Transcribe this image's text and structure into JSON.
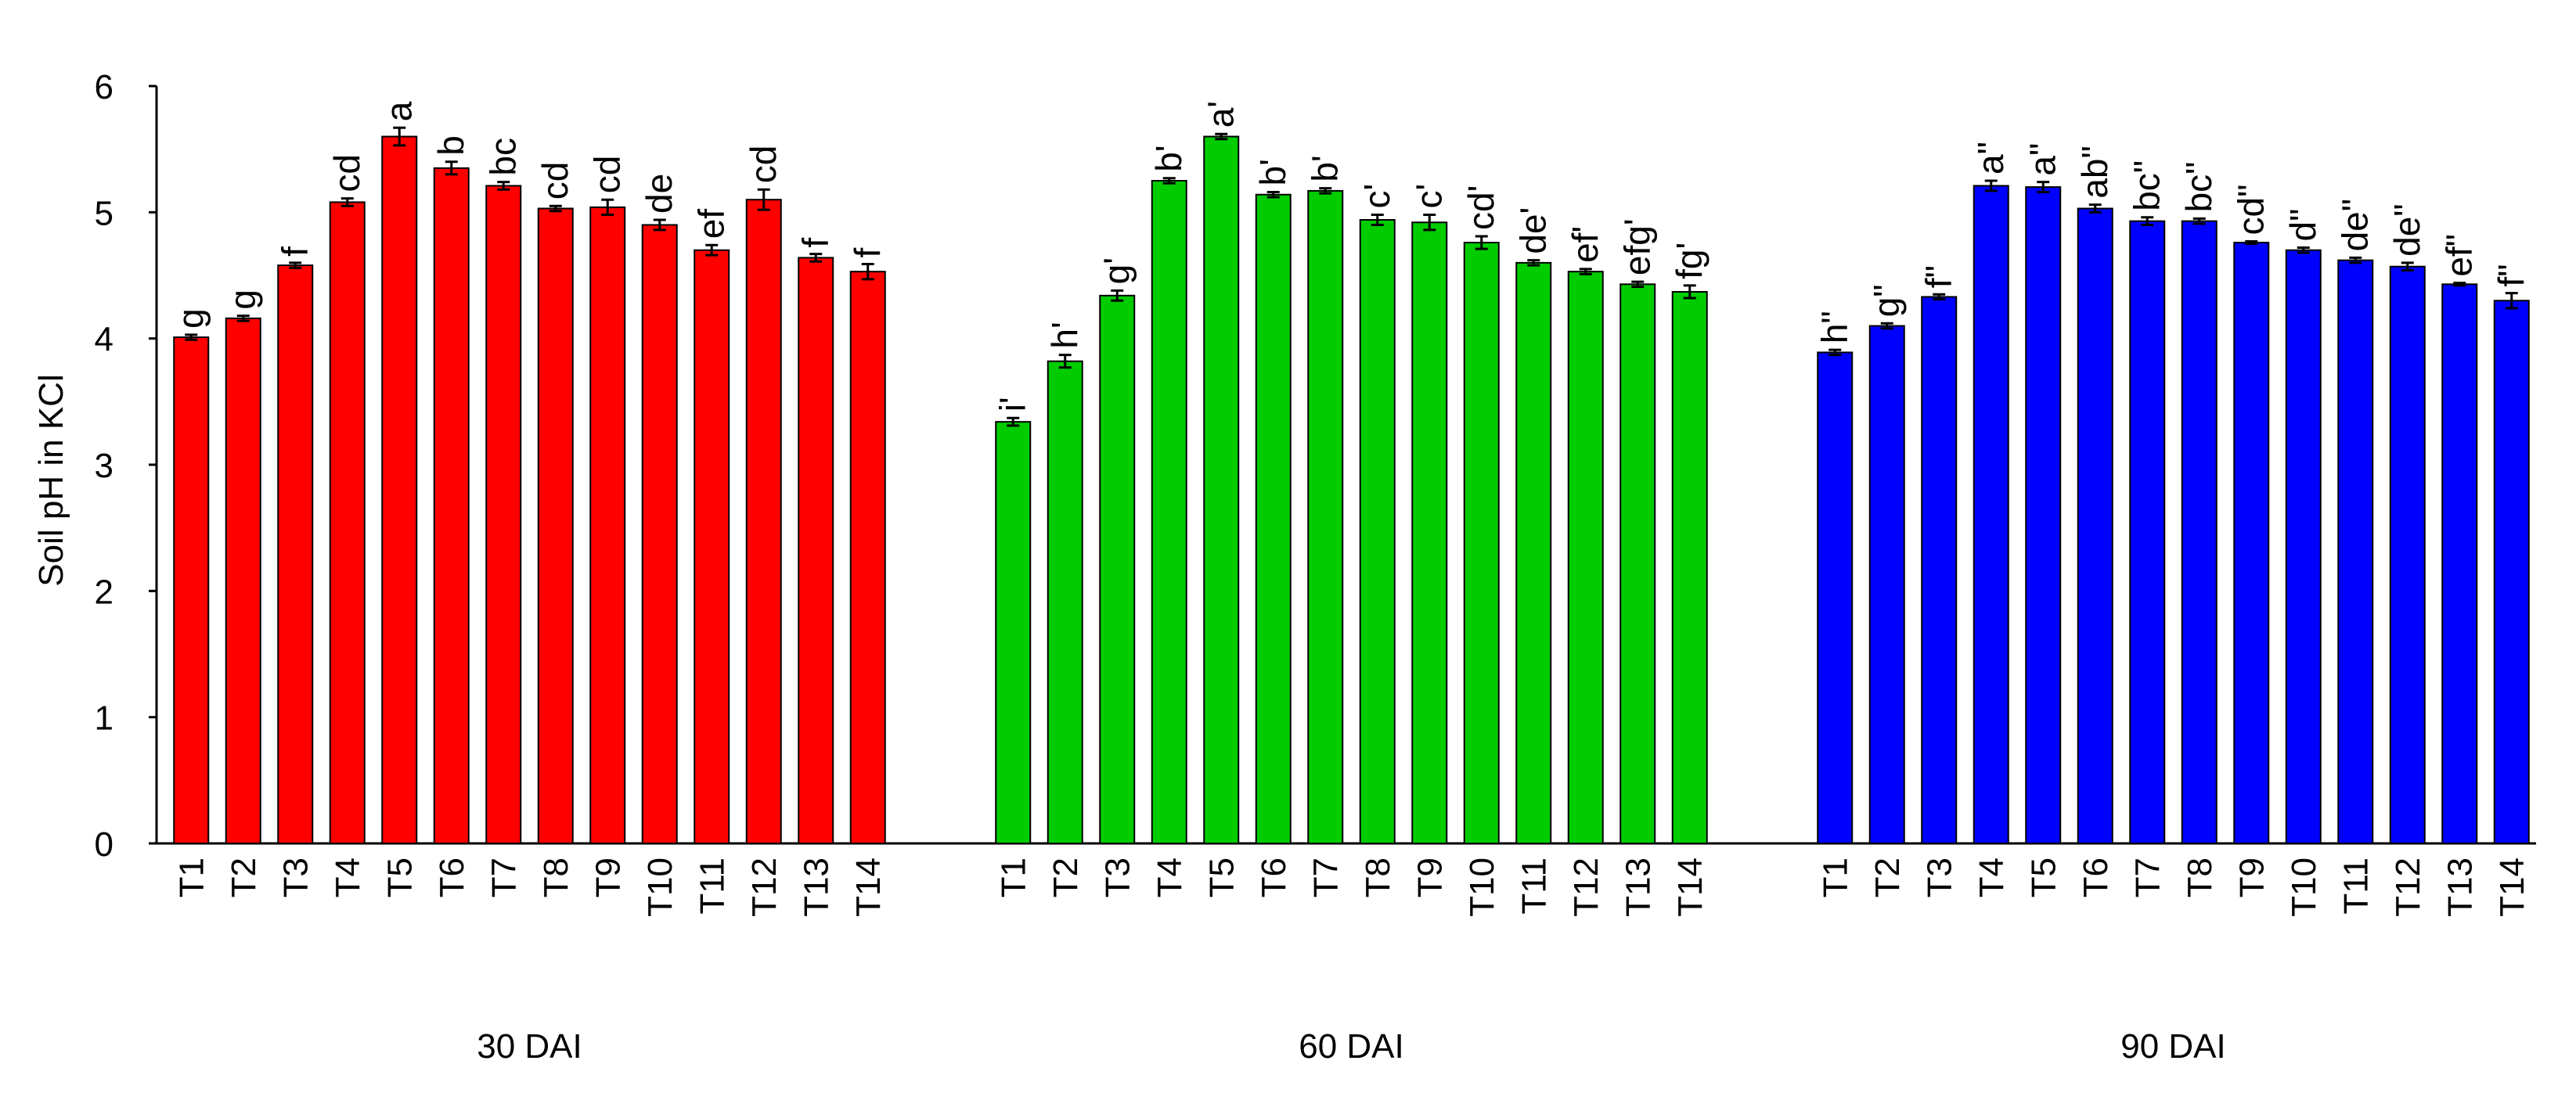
{
  "chart_data": {
    "type": "bar",
    "ylabel": "Soil pH in KCl",
    "xlabel": "",
    "ylim": [
      0,
      6
    ],
    "yticks": [
      0,
      1,
      2,
      3,
      4,
      5,
      6
    ],
    "grid": false,
    "legend": "none",
    "categories": [
      "T1",
      "T2",
      "T3",
      "T4",
      "T5",
      "T6",
      "T7",
      "T8",
      "T9",
      "T10",
      "T11",
      "T12",
      "T13",
      "T14"
    ],
    "groups": [
      {
        "label": "30 DAI",
        "color": "#ff0000",
        "values": [
          4.01,
          4.16,
          4.58,
          5.08,
          5.6,
          5.35,
          5.21,
          5.03,
          5.04,
          4.9,
          4.7,
          5.1,
          4.64,
          4.53
        ],
        "errors": [
          0.02,
          0.02,
          0.02,
          0.03,
          0.07,
          0.05,
          0.03,
          0.02,
          0.06,
          0.04,
          0.04,
          0.08,
          0.03,
          0.06
        ],
        "letters": [
          "g",
          "g",
          "f",
          "cd",
          "a",
          "b",
          "bc",
          "cd",
          "cd",
          "de",
          "ef",
          "cd",
          "f",
          "f"
        ]
      },
      {
        "label": "60 DAI",
        "color": "#00cc00",
        "values": [
          3.34,
          3.82,
          4.34,
          5.25,
          5.6,
          5.14,
          5.17,
          4.94,
          4.92,
          4.76,
          4.6,
          4.53,
          4.43,
          4.37
        ],
        "errors": [
          0.03,
          0.05,
          0.04,
          0.02,
          0.02,
          0.02,
          0.02,
          0.04,
          0.06,
          0.05,
          0.02,
          0.02,
          0.02,
          0.05
        ],
        "letters": [
          "i'",
          "h'",
          "g'",
          "b'",
          "a'",
          "b'",
          "b'",
          "c'",
          "c'",
          "cd'",
          "de'",
          "ef'",
          "efg'",
          "fg'"
        ]
      },
      {
        "label": "90 DAI",
        "color": "#0000ff",
        "values": [
          3.89,
          4.1,
          4.33,
          5.21,
          5.2,
          5.03,
          4.93,
          4.93,
          4.76,
          4.7,
          4.62,
          4.57,
          4.43,
          4.3
        ],
        "errors": [
          0.02,
          0.02,
          0.02,
          0.04,
          0.04,
          0.03,
          0.03,
          0.02,
          0.01,
          0.02,
          0.02,
          0.03,
          0.01,
          0.06
        ],
        "letters": [
          "h\"",
          "g\"",
          "f\"",
          "a\"",
          "a\"",
          "ab\"",
          "bc\"",
          "bc\"",
          "cd\"",
          "d\"",
          "de\"",
          "de\"",
          "ef\"",
          "f\""
        ]
      }
    ]
  }
}
